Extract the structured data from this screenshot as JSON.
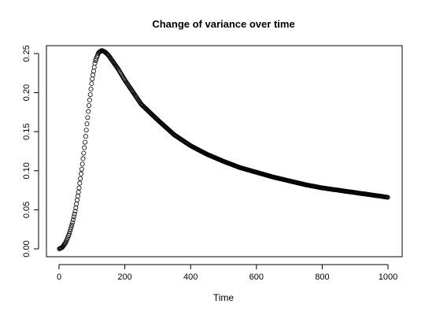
{
  "chart_data": {
    "type": "scatter",
    "title": "Change of variance over time",
    "xlabel": "Time",
    "ylabel": "",
    "xlim": [
      0,
      1000
    ],
    "ylim": [
      0,
      0.25
    ],
    "x_ticks": [
      0,
      200,
      400,
      600,
      800,
      1000
    ],
    "y_ticks": [
      0.0,
      0.05,
      0.1,
      0.15,
      0.2,
      0.25
    ],
    "x_tick_labels": [
      "0",
      "200",
      "400",
      "600",
      "800",
      "1000"
    ],
    "y_tick_labels": [
      "0.00",
      "0.05",
      "0.10",
      "0.15",
      "0.20",
      "0.25"
    ],
    "grid": false,
    "marker": "open-circle",
    "series": [
      {
        "x": [
          1,
          10,
          20,
          30,
          40,
          50,
          60,
          70,
          80,
          90,
          100,
          110,
          120,
          130,
          140,
          150,
          160,
          180,
          200,
          250,
          300,
          350,
          400,
          450,
          500,
          550,
          600,
          650,
          700,
          750,
          800,
          850,
          900,
          950,
          1000
        ],
        "y": [
          0.0,
          0.002,
          0.008,
          0.018,
          0.032,
          0.05,
          0.075,
          0.105,
          0.14,
          0.18,
          0.215,
          0.24,
          0.251,
          0.254,
          0.252,
          0.248,
          0.242,
          0.23,
          0.216,
          0.185,
          0.165,
          0.146,
          0.132,
          0.121,
          0.112,
          0.104,
          0.098,
          0.092,
          0.087,
          0.082,
          0.078,
          0.075,
          0.072,
          0.069,
          0.066
        ]
      }
    ]
  }
}
